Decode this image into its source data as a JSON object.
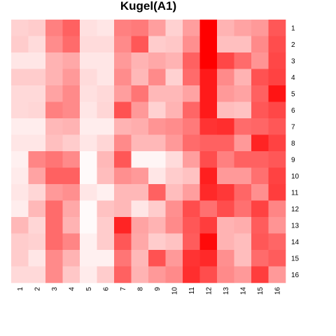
{
  "chart_data": {
    "type": "heatmap",
    "title": "Kugel(A1)",
    "xlabel": "",
    "ylabel": "",
    "x_categories": [
      "1",
      "2",
      "3",
      "4",
      "5",
      "6",
      "7",
      "8",
      "9",
      "10",
      "11",
      "12",
      "13",
      "14",
      "15",
      "16"
    ],
    "y_categories": [
      "1",
      "2",
      "3",
      "4",
      "5",
      "6",
      "7",
      "8",
      "9",
      "10",
      "11",
      "12",
      "13",
      "14",
      "15",
      "16"
    ],
    "scale": {
      "min": 0,
      "max": 1,
      "low_color": "#ffffff",
      "high_color": "#ff0000"
    },
    "grid": false,
    "legend": "none",
    "values": [
      [
        0.18,
        0.2,
        0.5,
        0.62,
        0.12,
        0.1,
        0.5,
        0.52,
        0.38,
        0.18,
        0.38,
        1.0,
        0.3,
        0.36,
        0.4,
        0.66
      ],
      [
        0.2,
        0.14,
        0.45,
        0.58,
        0.14,
        0.14,
        0.46,
        0.66,
        0.2,
        0.22,
        0.44,
        1.0,
        0.25,
        0.25,
        0.46,
        0.7
      ],
      [
        0.1,
        0.1,
        0.3,
        0.34,
        0.1,
        0.1,
        0.4,
        0.3,
        0.34,
        0.3,
        0.62,
        1.0,
        0.72,
        0.58,
        0.42,
        0.72
      ],
      [
        0.2,
        0.2,
        0.3,
        0.4,
        0.14,
        0.1,
        0.45,
        0.28,
        0.46,
        0.18,
        0.58,
        0.9,
        0.46,
        0.3,
        0.68,
        0.74
      ],
      [
        0.15,
        0.15,
        0.36,
        0.46,
        0.12,
        0.15,
        0.38,
        0.54,
        0.28,
        0.28,
        0.36,
        0.9,
        0.4,
        0.36,
        0.62,
        0.92
      ],
      [
        0.15,
        0.16,
        0.5,
        0.46,
        0.1,
        0.16,
        0.68,
        0.4,
        0.18,
        0.3,
        0.6,
        0.9,
        0.26,
        0.24,
        0.66,
        0.72
      ],
      [
        0.07,
        0.07,
        0.28,
        0.3,
        0.07,
        0.07,
        0.3,
        0.32,
        0.42,
        0.45,
        0.52,
        0.8,
        0.82,
        0.58,
        0.6,
        0.66
      ],
      [
        0.1,
        0.1,
        0.25,
        0.2,
        0.1,
        0.16,
        0.46,
        0.28,
        0.28,
        0.4,
        0.58,
        0.62,
        0.62,
        0.4,
        0.86,
        0.74
      ],
      [
        0.06,
        0.48,
        0.54,
        0.46,
        0.02,
        0.28,
        0.66,
        0.04,
        0.04,
        0.14,
        0.38,
        0.7,
        0.5,
        0.62,
        0.62,
        0.66
      ],
      [
        0.08,
        0.36,
        0.62,
        0.62,
        0.02,
        0.26,
        0.44,
        0.4,
        0.1,
        0.2,
        0.24,
        0.88,
        0.4,
        0.4,
        0.56,
        0.74
      ],
      [
        0.1,
        0.16,
        0.4,
        0.44,
        0.1,
        0.06,
        0.28,
        0.28,
        0.62,
        0.26,
        0.38,
        0.84,
        0.78,
        0.6,
        0.44,
        0.76
      ],
      [
        0.07,
        0.28,
        0.58,
        0.34,
        0.02,
        0.24,
        0.28,
        0.1,
        0.2,
        0.44,
        0.7,
        0.56,
        0.7,
        0.56,
        0.74,
        0.48
      ],
      [
        0.28,
        0.16,
        0.58,
        0.3,
        0.02,
        0.2,
        0.86,
        0.36,
        0.3,
        0.46,
        0.66,
        0.76,
        0.3,
        0.32,
        0.64,
        0.42
      ],
      [
        0.2,
        0.18,
        0.58,
        0.48,
        0.06,
        0.2,
        0.66,
        0.34,
        0.2,
        0.24,
        0.64,
        0.96,
        0.3,
        0.26,
        0.66,
        0.6
      ],
      [
        0.2,
        0.1,
        0.46,
        0.3,
        0.06,
        0.06,
        0.54,
        0.28,
        0.68,
        0.4,
        0.8,
        0.84,
        0.44,
        0.26,
        0.58,
        0.64
      ],
      [
        0.15,
        0.15,
        0.46,
        0.22,
        0.08,
        0.2,
        0.62,
        0.3,
        0.4,
        0.46,
        0.82,
        0.7,
        0.46,
        0.4,
        0.76,
        0.4
      ]
    ]
  }
}
